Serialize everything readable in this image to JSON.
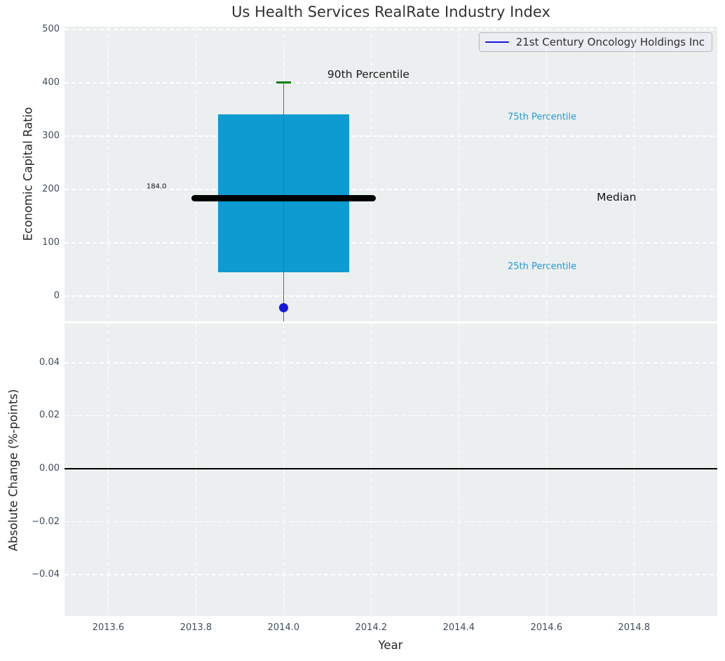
{
  "title": "Us Health Services RealRate Industry Index",
  "legend": {
    "label": "21st Century Oncology Holdings Inc",
    "line_color": "#1515dd"
  },
  "colors": {
    "axes_background": "#eceff0",
    "grid": "#ffffff",
    "box_fill": "#0d9bd1",
    "whisker": "#5f6a6a",
    "cap_green": "#0b800b",
    "median_black": "#000000",
    "point_blue": "#1515dd",
    "percentile_text": "#1f9cd2",
    "tick_text": "#3e4e5e",
    "zero_line": "#000000"
  },
  "chart_data": [
    {
      "type": "box",
      "title": "Us Health Services RealRate Industry Index",
      "ylabel": "Economic Capital Ratio",
      "xlim": [
        2013.5,
        2014.99
      ],
      "ylim": [
        -47,
        505
      ],
      "grid": "white dashed on",
      "legend_position": "upper right",
      "yticks": [
        {
          "v": 500,
          "label": "500"
        },
        {
          "v": 400,
          "label": "400"
        },
        {
          "v": 300,
          "label": "300"
        },
        {
          "v": 200,
          "label": "200"
        },
        {
          "v": 100,
          "label": "100"
        },
        {
          "v": 0,
          "label": "0"
        }
      ],
      "xticks": [
        {
          "v": 2013.6,
          "label": "2013.6"
        },
        {
          "v": 2013.8,
          "label": "2013.8"
        },
        {
          "v": 2014.0,
          "label": "2014.0"
        },
        {
          "v": 2014.2,
          "label": "2014.2"
        },
        {
          "v": 2014.4,
          "label": "2014.4"
        },
        {
          "v": 2014.6,
          "label": "2014.6"
        },
        {
          "v": 2014.8,
          "label": "2014.8"
        }
      ],
      "box": {
        "x": 2014.0,
        "x_left": 2013.85,
        "x_right": 2014.15,
        "p25": 45,
        "median": 184,
        "p75": 341,
        "p90": 400,
        "whisker_low": -47,
        "cap_left": 2013.983,
        "cap_right": 2014.017,
        "median_x_left": 2013.79,
        "median_x_right": 2014.21,
        "company_point": -21,
        "median_value_label": "184.0"
      },
      "annotations": [
        {
          "text": "90th Percentile",
          "x": 2014.1,
          "y": 415,
          "color": "#1a1a1a",
          "size": 15.5,
          "anchor": "left"
        },
        {
          "text": "75th Percentile",
          "x": 2014.59,
          "y": 335,
          "color": "#1f9cd2",
          "size": 13,
          "anchor": "center"
        },
        {
          "text": "Median",
          "x": 2014.76,
          "y": 185,
          "color": "#111111",
          "size": 15.5,
          "anchor": "center"
        },
        {
          "text": "25th Percentile",
          "x": 2014.59,
          "y": 55,
          "color": "#1f9cd2",
          "size": 13,
          "anchor": "center"
        },
        {
          "text": "184.0",
          "x": 2013.71,
          "y": 205,
          "color": "#111111",
          "size": 10,
          "anchor": "center"
        }
      ]
    },
    {
      "type": "line",
      "ylabel": "Absolute Change (%-points)",
      "xlabel": "Year",
      "xlim": [
        2013.5,
        2014.99
      ],
      "ylim": [
        -0.0556,
        0.0548
      ],
      "grid": "white dashed on",
      "zero_line": 0.0,
      "series": [
        {
          "name": "21st Century Oncology Holdings Inc",
          "color": "#1515dd",
          "x": [],
          "y": []
        }
      ],
      "yticks": [
        {
          "v": 0.04,
          "label": "0.04"
        },
        {
          "v": 0.02,
          "label": "0.02"
        },
        {
          "v": 0.0,
          "label": "0.00"
        },
        {
          "v": -0.02,
          "label": "−0.02"
        },
        {
          "v": -0.04,
          "label": "−0.04"
        }
      ],
      "xticks": [
        {
          "v": 2013.6,
          "label": "2013.6"
        },
        {
          "v": 2013.8,
          "label": "2013.8"
        },
        {
          "v": 2014.0,
          "label": "2014.0"
        },
        {
          "v": 2014.2,
          "label": "2014.2"
        },
        {
          "v": 2014.4,
          "label": "2014.4"
        },
        {
          "v": 2014.6,
          "label": "2014.6"
        },
        {
          "v": 2014.8,
          "label": "2014.8"
        }
      ]
    }
  ]
}
